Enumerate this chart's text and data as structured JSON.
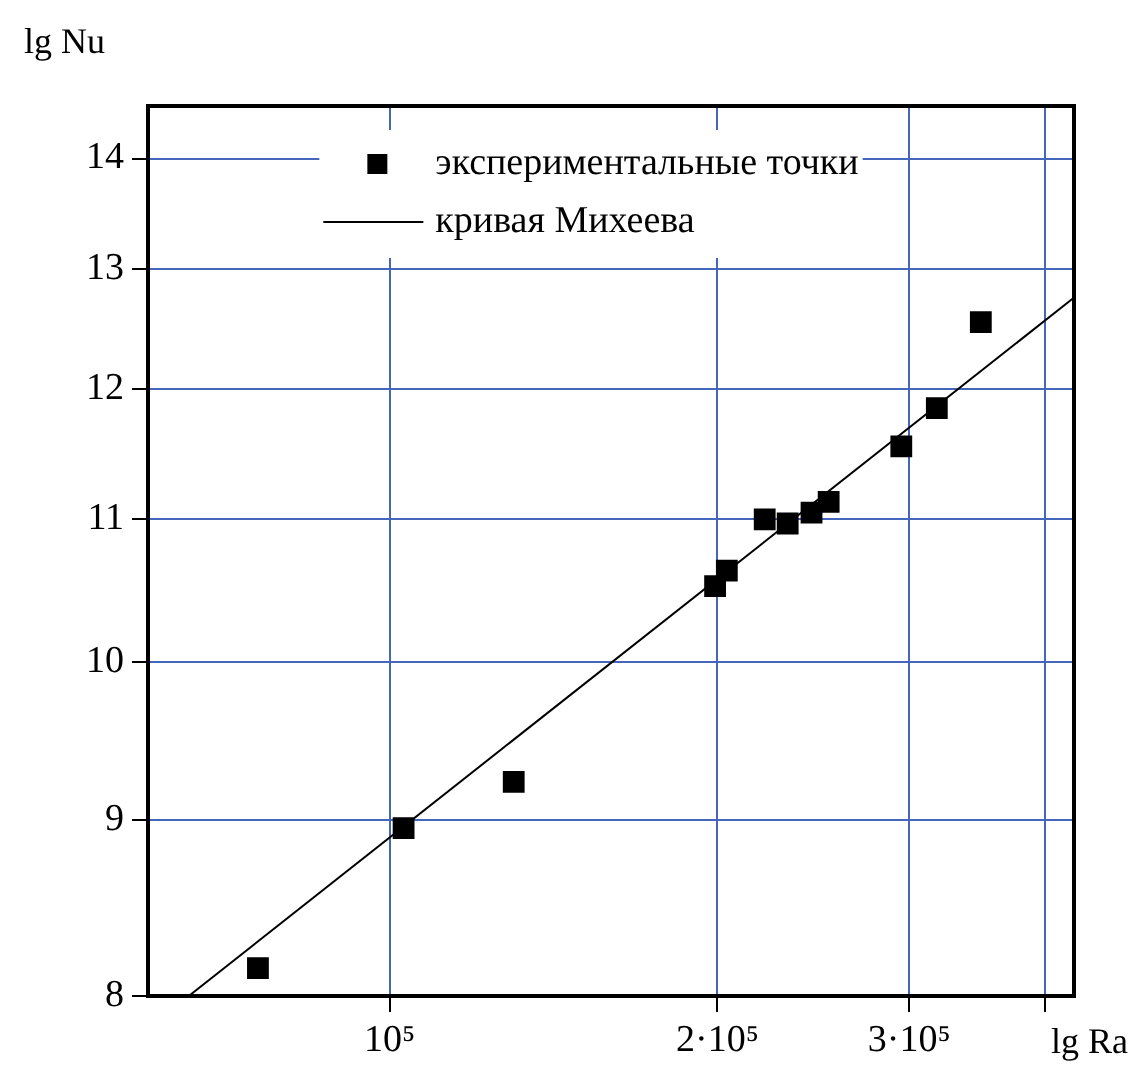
{
  "chart_data": {
    "type": "scatter",
    "xlabel": "lg Ra",
    "ylabel": "lg Nu",
    "log": "xy",
    "grid": true,
    "legend": "top",
    "marker": "square",
    "xlim": [
      60000,
      425000
    ],
    "xticks": [
      {
        "value": 100000,
        "label": "10⁵"
      },
      {
        "value": 200000,
        "label": "2·10⁵"
      },
      {
        "value": 300000,
        "label": "3·10⁵"
      },
      {
        "value": 400000,
        "label": null
      }
    ],
    "ylim": [
      8,
      14.5
    ],
    "yticks": [
      8,
      9,
      10,
      11,
      12,
      13,
      14
    ],
    "series": [
      {
        "name": "экспериментальные точки",
        "type": "scatter",
        "color": "#000000",
        "x": [
          75700,
          103000,
          130000,
          199000,
          204000,
          221000,
          232000,
          244000,
          253000,
          295000,
          318000,
          349000
        ],
        "values": [
          8.15,
          8.95,
          9.23,
          10.52,
          10.63,
          11.0,
          10.97,
          11.05,
          11.13,
          11.55,
          11.85,
          12.55
        ]
      },
      {
        "name": "кривая Михеева",
        "type": "line",
        "color": "#000000",
        "marker": "none",
        "line_style": "solid",
        "x": [
          65400,
          424000
        ],
        "values": [
          8,
          12.75
        ]
      }
    ]
  }
}
